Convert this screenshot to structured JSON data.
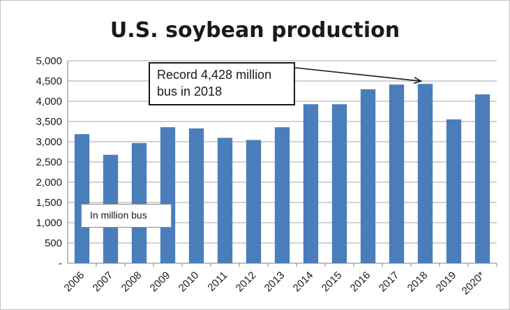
{
  "chart_data": {
    "type": "bar",
    "title": "U.S. soybean production",
    "xlabel": "",
    "ylabel": "",
    "unit_note": "In million bus",
    "annotation": "Record 4,428 million bus in 2018",
    "annotation_target": "2018",
    "categories": [
      "2006",
      "2007",
      "2008",
      "2009",
      "2010",
      "2011",
      "2012",
      "2013",
      "2014",
      "2015",
      "2016",
      "2017",
      "2018",
      "2019",
      "2020*"
    ],
    "values": [
      3188,
      2677,
      2967,
      3359,
      3329,
      3097,
      3042,
      3358,
      3927,
      3926,
      4296,
      4412,
      4428,
      3552,
      4170
    ],
    "ylim": [
      0,
      5000
    ],
    "ytick_values": [
      0,
      500,
      1000,
      1500,
      2000,
      2500,
      3000,
      3500,
      4000,
      4500,
      5000
    ],
    "ytick_labels": [
      "-",
      "500",
      "1,000",
      "1,500",
      "2,000",
      "2,500",
      "3,000",
      "3,500",
      "4,000",
      "4,500",
      "5,000"
    ],
    "grid": true,
    "bar_color": "#4a7ebb",
    "grid_color": "#a6a6a6"
  }
}
